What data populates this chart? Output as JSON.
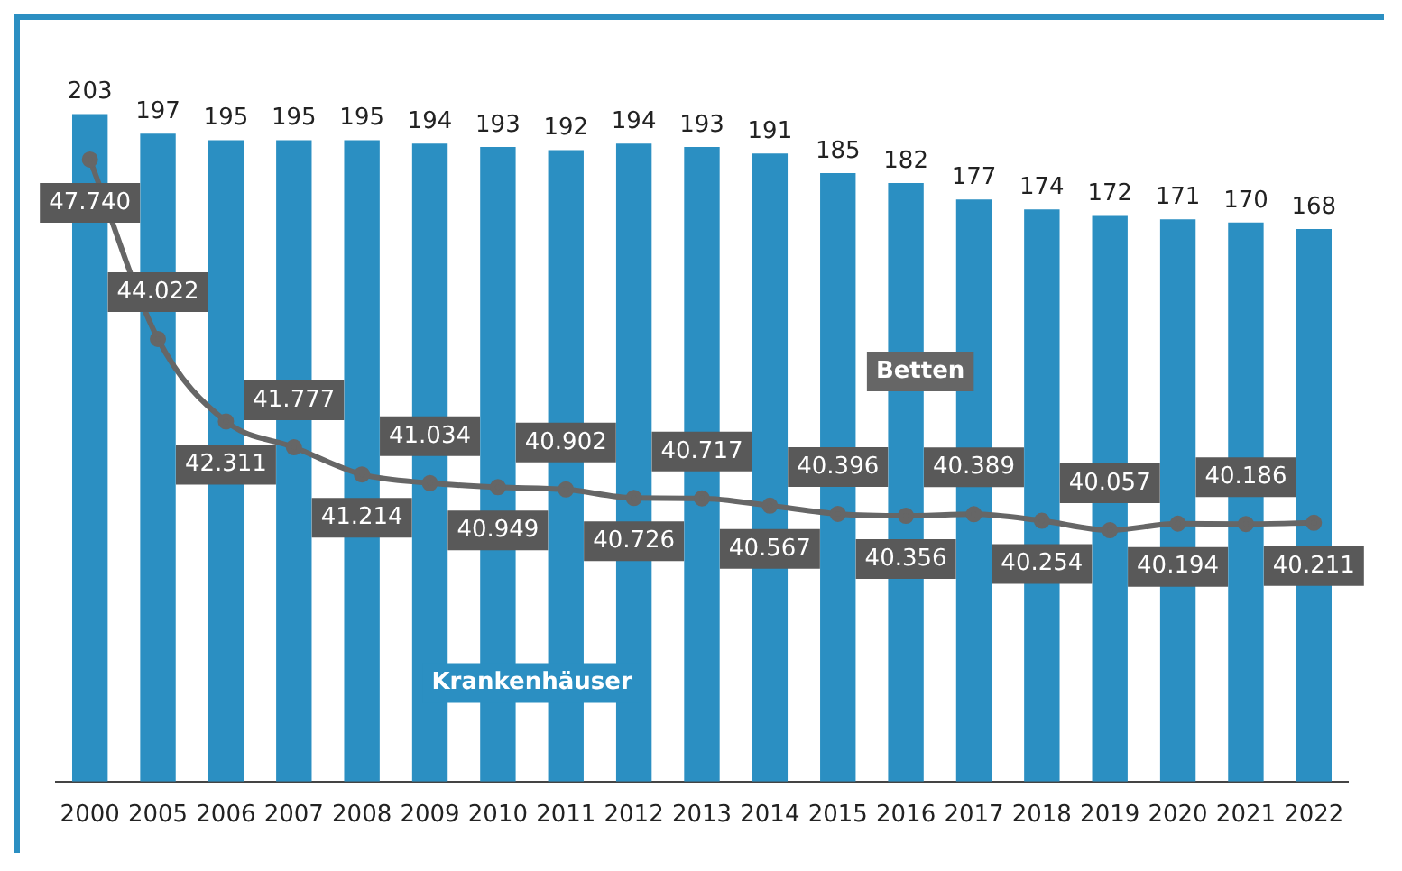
{
  "chart_data": {
    "type": "bar",
    "categories": [
      "2000",
      "2005",
      "2006",
      "2007",
      "2008",
      "2009",
      "2010",
      "2011",
      "2012",
      "2013",
      "2014",
      "2015",
      "2016",
      "2017",
      "2018",
      "2019",
      "2020",
      "2021",
      "2022"
    ],
    "series": [
      {
        "name": "Krankenhäuser",
        "color": "#2b8fc2",
        "values": [
          203,
          197,
          195,
          195,
          195,
          194,
          193,
          192,
          194,
          193,
          191,
          185,
          182,
          177,
          174,
          172,
          171,
          170,
          168
        ]
      },
      {
        "name": "Betten",
        "type": "line",
        "axis": "y2",
        "color": "#666666",
        "values": [
          47740,
          44022,
          42311,
          41777,
          41214,
          41034,
          40949,
          40902,
          40726,
          40717,
          40567,
          40396,
          40356,
          40389,
          40254,
          40057,
          40194,
          40186,
          40211
        ],
        "value_labels": [
          "47.740",
          "44.022",
          "42.311",
          "41.777",
          "41.214",
          "41.034",
          "40.949",
          "40.902",
          "40.726",
          "40.717",
          "40.567",
          "40.396",
          "40.356",
          "40.389",
          "40.254",
          "40.057",
          "40.194",
          "40.186",
          "40.211"
        ]
      }
    ],
    "tick_labels": "x",
    "grid": false,
    "legend": false,
    "data_labels": true,
    "marker": "circle",
    "line_style": "solid"
  }
}
